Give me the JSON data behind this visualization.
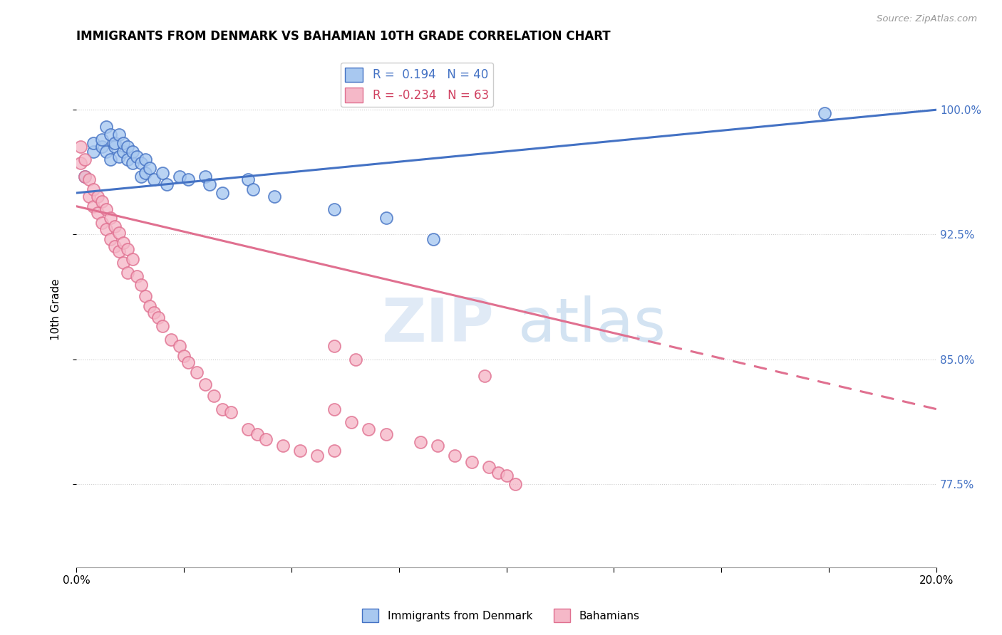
{
  "title": "IMMIGRANTS FROM DENMARK VS BAHAMIAN 10TH GRADE CORRELATION CHART",
  "source": "Source: ZipAtlas.com",
  "ylabel": "10th Grade",
  "ytick_labels": [
    "77.5%",
    "85.0%",
    "92.5%",
    "100.0%"
  ],
  "ytick_values": [
    0.775,
    0.85,
    0.925,
    1.0
  ],
  "xlim": [
    0.0,
    0.2
  ],
  "ylim": [
    0.725,
    1.035
  ],
  "legend_label1": "Immigrants from Denmark",
  "legend_label2": "Bahamians",
  "r1": 0.194,
  "n1": 40,
  "r2": -0.234,
  "n2": 63,
  "color_denmark": "#a8c8f0",
  "color_bahamian": "#f5b8c8",
  "color_line_denmark": "#4472c4",
  "color_line_bahamian": "#e07090",
  "denmark_line_y0": 0.95,
  "denmark_line_y1": 1.0,
  "bahamian_line_y0": 0.942,
  "bahamian_line_y1": 0.82,
  "bahamian_line_solid_end": 0.128,
  "denmark_x": [
    0.002,
    0.004,
    0.004,
    0.006,
    0.006,
    0.007,
    0.007,
    0.008,
    0.008,
    0.009,
    0.009,
    0.01,
    0.01,
    0.011,
    0.011,
    0.012,
    0.012,
    0.013,
    0.013,
    0.014,
    0.015,
    0.015,
    0.016,
    0.016,
    0.017,
    0.018,
    0.02,
    0.021,
    0.024,
    0.026,
    0.03,
    0.031,
    0.034,
    0.04,
    0.041,
    0.046,
    0.06,
    0.072,
    0.083,
    0.174
  ],
  "denmark_y": [
    0.96,
    0.975,
    0.98,
    0.978,
    0.982,
    0.975,
    0.99,
    0.97,
    0.985,
    0.978,
    0.98,
    0.972,
    0.985,
    0.975,
    0.98,
    0.97,
    0.978,
    0.968,
    0.975,
    0.972,
    0.96,
    0.968,
    0.962,
    0.97,
    0.965,
    0.958,
    0.962,
    0.955,
    0.96,
    0.958,
    0.96,
    0.955,
    0.95,
    0.958,
    0.952,
    0.948,
    0.94,
    0.935,
    0.922,
    0.998
  ],
  "bahamian_x": [
    0.001,
    0.001,
    0.002,
    0.002,
    0.003,
    0.003,
    0.004,
    0.004,
    0.005,
    0.005,
    0.006,
    0.006,
    0.007,
    0.007,
    0.008,
    0.008,
    0.009,
    0.009,
    0.01,
    0.01,
    0.011,
    0.011,
    0.012,
    0.012,
    0.013,
    0.014,
    0.015,
    0.016,
    0.017,
    0.018,
    0.019,
    0.02,
    0.022,
    0.024,
    0.025,
    0.026,
    0.028,
    0.03,
    0.032,
    0.034,
    0.036,
    0.04,
    0.042,
    0.044,
    0.048,
    0.052,
    0.056,
    0.06,
    0.06,
    0.064,
    0.068,
    0.072,
    0.08,
    0.084,
    0.088,
    0.092,
    0.096,
    0.098,
    0.1,
    0.102,
    0.06,
    0.065,
    0.095
  ],
  "bahamian_y": [
    0.978,
    0.968,
    0.97,
    0.96,
    0.958,
    0.948,
    0.952,
    0.942,
    0.948,
    0.938,
    0.945,
    0.932,
    0.94,
    0.928,
    0.935,
    0.922,
    0.93,
    0.918,
    0.926,
    0.915,
    0.92,
    0.908,
    0.916,
    0.902,
    0.91,
    0.9,
    0.895,
    0.888,
    0.882,
    0.878,
    0.875,
    0.87,
    0.862,
    0.858,
    0.852,
    0.848,
    0.842,
    0.835,
    0.828,
    0.82,
    0.818,
    0.808,
    0.805,
    0.802,
    0.798,
    0.795,
    0.792,
    0.795,
    0.82,
    0.812,
    0.808,
    0.805,
    0.8,
    0.798,
    0.792,
    0.788,
    0.785,
    0.782,
    0.78,
    0.775,
    0.858,
    0.85,
    0.84
  ]
}
